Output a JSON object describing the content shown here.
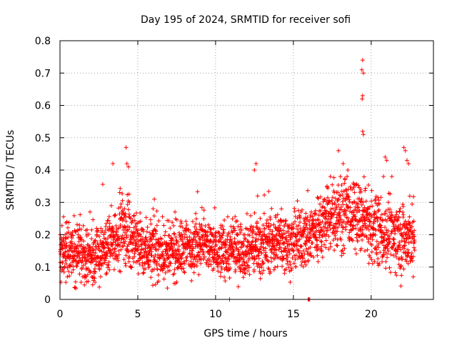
{
  "chart_data": {
    "type": "scatter",
    "title": "Day 195 of 2024, SRMTID for receiver sofi",
    "xlabel": "GPS time / hours",
    "ylabel": "SRMTID / TECUs",
    "xlim": [
      0,
      24
    ],
    "ylim": [
      0,
      0.8
    ],
    "x_ticks": [
      0,
      5,
      10,
      15,
      20
    ],
    "x_tick_labels": [
      "0",
      "5",
      "10",
      "15",
      "20"
    ],
    "y_ticks": [
      0,
      0.1,
      0.2,
      0.3,
      0.4,
      0.5,
      0.6,
      0.7,
      0.8
    ],
    "y_tick_labels": [
      "0",
      "0.1",
      "0.2",
      "0.3",
      "0.4",
      "0.5",
      "0.6",
      "0.7",
      "0.8"
    ],
    "grid": true,
    "marker": "+",
    "color": "#ff0000",
    "series": [
      {
        "name": "SRMTID",
        "profile": {
          "hours": [
            0,
            1,
            2,
            3,
            4,
            5,
            6,
            7,
            8,
            9,
            10,
            11,
            12,
            13,
            14,
            15,
            16,
            17,
            18,
            19,
            20,
            21,
            22,
            22.8
          ],
          "median": [
            0.16,
            0.14,
            0.13,
            0.16,
            0.22,
            0.17,
            0.15,
            0.14,
            0.16,
            0.18,
            0.15,
            0.15,
            0.16,
            0.17,
            0.18,
            0.17,
            0.2,
            0.24,
            0.27,
            0.26,
            0.22,
            0.2,
            0.19,
            0.18
          ],
          "spread": [
            0.05,
            0.05,
            0.05,
            0.05,
            0.06,
            0.05,
            0.05,
            0.05,
            0.05,
            0.05,
            0.05,
            0.05,
            0.05,
            0.05,
            0.05,
            0.05,
            0.06,
            0.06,
            0.07,
            0.06,
            0.06,
            0.06,
            0.07,
            0.06
          ]
        },
        "highlights": [
          {
            "x": 4.25,
            "y": 0.47
          },
          {
            "x": 3.4,
            "y": 0.42
          },
          {
            "x": 4.4,
            "y": 0.41
          },
          {
            "x": 4.3,
            "y": 0.42
          },
          {
            "x": 12.6,
            "y": 0.42
          },
          {
            "x": 12.5,
            "y": 0.4
          },
          {
            "x": 12.7,
            "y": 0.32
          },
          {
            "x": 19.45,
            "y": 0.74
          },
          {
            "x": 19.4,
            "y": 0.71
          },
          {
            "x": 19.5,
            "y": 0.7
          },
          {
            "x": 19.45,
            "y": 0.63
          },
          {
            "x": 19.42,
            "y": 0.62
          },
          {
            "x": 19.45,
            "y": 0.52
          },
          {
            "x": 19.5,
            "y": 0.51
          },
          {
            "x": 17.9,
            "y": 0.46
          },
          {
            "x": 18.2,
            "y": 0.42
          },
          {
            "x": 18.5,
            "y": 0.4
          },
          {
            "x": 20.9,
            "y": 0.44
          },
          {
            "x": 21.0,
            "y": 0.43
          },
          {
            "x": 22.1,
            "y": 0.47
          },
          {
            "x": 22.2,
            "y": 0.46
          },
          {
            "x": 22.3,
            "y": 0.43
          },
          {
            "x": 22.4,
            "y": 0.42
          },
          {
            "x": 10.9,
            "y": 0.0
          },
          {
            "x": 16.0,
            "y": 0.0
          },
          {
            "x": 16.05,
            "y": 0.0
          },
          {
            "x": 15.95,
            "y": 0.0
          },
          {
            "x": 6.9,
            "y": 0.035
          },
          {
            "x": 2.1,
            "y": 0.045
          },
          {
            "x": 22.7,
            "y": 0.07
          }
        ]
      }
    ]
  }
}
